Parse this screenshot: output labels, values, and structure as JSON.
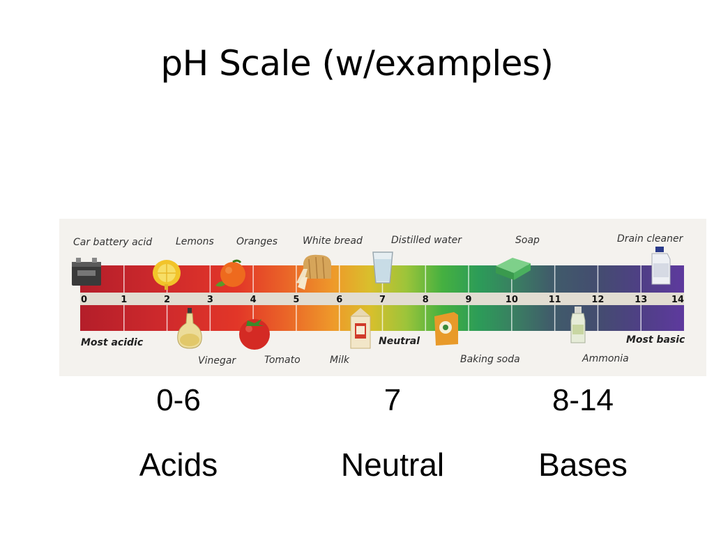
{
  "title": "pH Scale (w/examples)",
  "scale": {
    "min": 0,
    "max": 14,
    "numbers": [
      "0",
      "1",
      "2",
      "3",
      "4",
      "5",
      "6",
      "7",
      "8",
      "9",
      "10",
      "11",
      "12",
      "13",
      "14"
    ],
    "most_acidic": "Most acidic",
    "neutral": "Neutral",
    "most_basic": "Most basic",
    "gradient_colors": [
      "#b41e2a",
      "#d42a2a",
      "#e43a28",
      "#ea6a28",
      "#ee9a2a",
      "#d6c02c",
      "#9cc43a",
      "#3fae3e",
      "#2a9a5c",
      "#3a7a62",
      "#3f5a6a",
      "#424c6e",
      "#4a3f7e",
      "#5a3a9a"
    ]
  },
  "examples_top": [
    {
      "label": "Car battery acid",
      "icon": "battery-icon"
    },
    {
      "label": "Lemons",
      "icon": "lemon-icon"
    },
    {
      "label": "Oranges",
      "icon": "orange-icon"
    },
    {
      "label": "White bread",
      "icon": "bread-icon"
    },
    {
      "label": "Distilled water",
      "icon": "water-glass-icon"
    },
    {
      "label": "Soap",
      "icon": "soap-icon"
    },
    {
      "label": "Drain cleaner",
      "icon": "drain-cleaner-icon"
    }
  ],
  "examples_bottom": [
    {
      "label": "Vinegar",
      "icon": "vinegar-icon"
    },
    {
      "label": "Tomato",
      "icon": "tomato-icon"
    },
    {
      "label": "Milk",
      "icon": "milk-icon"
    },
    {
      "label": "Baking soda",
      "icon": "baking-soda-icon"
    },
    {
      "label": "Ammonia",
      "icon": "ammonia-icon"
    }
  ],
  "categories": [
    {
      "range": "0-6",
      "name": "Acids"
    },
    {
      "range": "7",
      "name": "Neutral"
    },
    {
      "range": "8-14",
      "name": "Bases"
    }
  ]
}
